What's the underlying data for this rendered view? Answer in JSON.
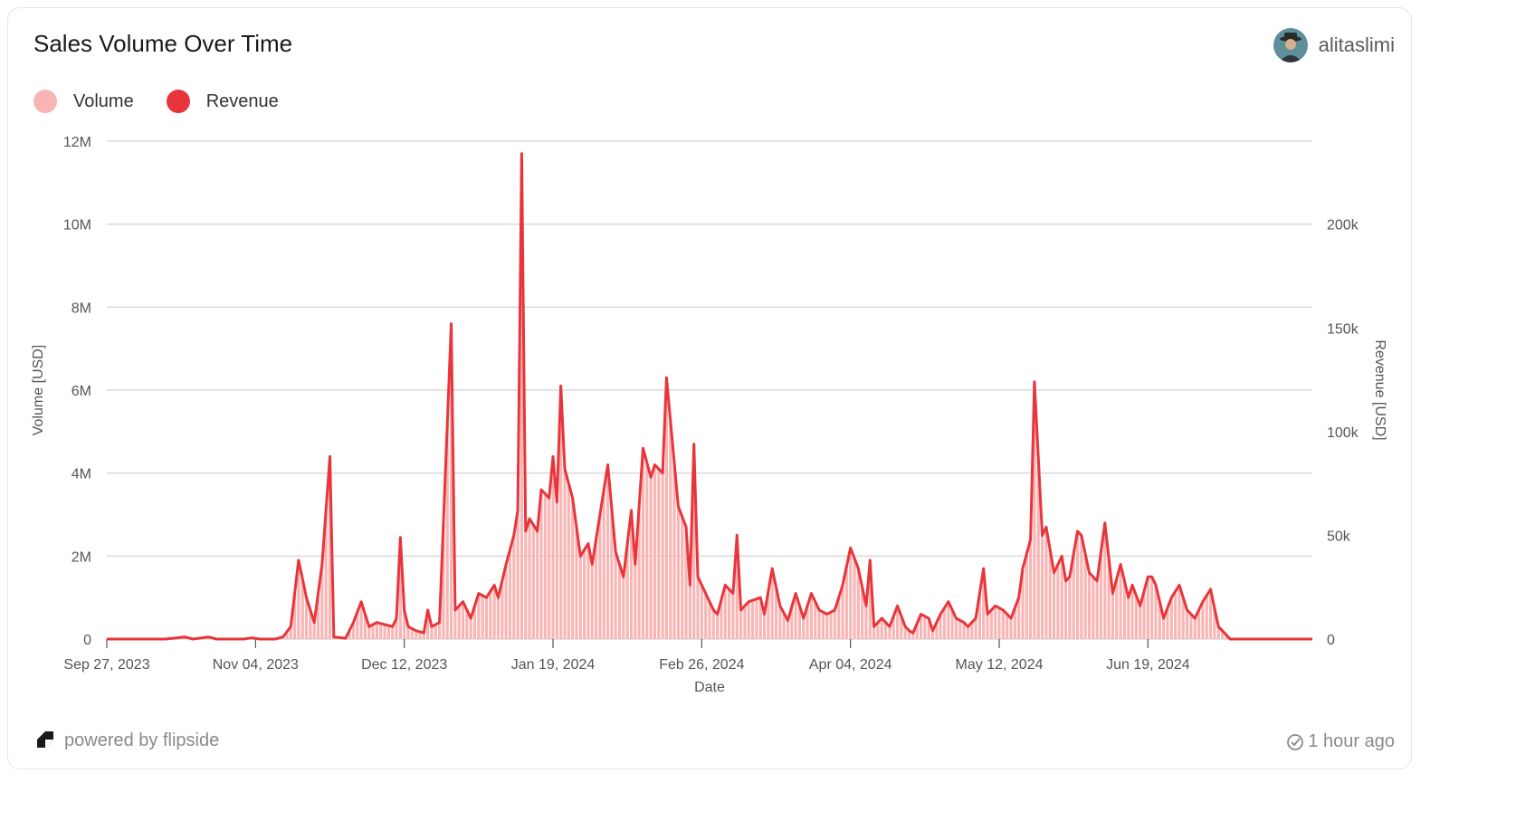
{
  "card": {
    "title": "Sales Volume Over Time",
    "user": {
      "name": "alitaslimi",
      "avatar_icon": "user-avatar-icon"
    },
    "footer": {
      "powered_by": "powered by flipside",
      "updated": "1 hour ago"
    }
  },
  "colors": {
    "volume": "#f9b4b4",
    "revenue": "#e8353b",
    "grid": "#d9d9d9",
    "axis_text": "#555555"
  },
  "chart_data": {
    "type": "bar+line",
    "title": "Sales Volume Over Time",
    "xlabel": "Date",
    "ylabel_left": "Volume [USD]",
    "ylabel_right": "Revenue [USD]",
    "grid": true,
    "legend_position": "top-left",
    "series": [
      {
        "name": "Volume",
        "type": "bar",
        "axis": "left"
      },
      {
        "name": "Revenue",
        "type": "line",
        "axis": "right"
      }
    ],
    "y_left": {
      "min": 0,
      "max": 12000000,
      "ticks": [
        0,
        2000000,
        4000000,
        6000000,
        8000000,
        10000000,
        12000000
      ],
      "tick_labels": [
        "0",
        "2M",
        "4M",
        "6M",
        "8M",
        "10M",
        "12M"
      ]
    },
    "y_right": {
      "min": 0,
      "max": 240000,
      "ticks": [
        0,
        50000,
        100000,
        150000,
        200000
      ],
      "tick_labels": [
        "0",
        "50k",
        "100k",
        "150k",
        "200k"
      ]
    },
    "x_start": "2023-09-27",
    "x_end": "2024-07-31",
    "x_ticks": [
      "2023-09-27",
      "2023-11-04",
      "2023-12-12",
      "2024-01-19",
      "2024-02-26",
      "2024-04-04",
      "2024-05-12",
      "2024-06-19"
    ],
    "x_tick_labels": [
      "Sep 27, 2023",
      "Nov 04, 2023",
      "Dec 12, 2023",
      "Jan 19, 2024",
      "Feb 26, 2024",
      "Apr 04, 2024",
      "May 12, 2024",
      "Jun 19, 2024"
    ],
    "points": [
      [
        "2023-09-27",
        0
      ],
      [
        "2023-10-12",
        0
      ],
      [
        "2023-10-17",
        50000
      ],
      [
        "2023-10-19",
        0
      ],
      [
        "2023-10-23",
        50000
      ],
      [
        "2023-10-25",
        0
      ],
      [
        "2023-11-01",
        0
      ],
      [
        "2023-11-03",
        30000
      ],
      [
        "2023-11-05",
        0
      ],
      [
        "2023-11-09",
        0
      ],
      [
        "2023-11-11",
        50000
      ],
      [
        "2023-11-13",
        300000
      ],
      [
        "2023-11-15",
        1900000
      ],
      [
        "2023-11-17",
        1000000
      ],
      [
        "2023-11-19",
        400000
      ],
      [
        "2023-11-21",
        1800000
      ],
      [
        "2023-11-23",
        4400000
      ],
      [
        "2023-11-24",
        50000
      ],
      [
        "2023-11-27",
        20000
      ],
      [
        "2023-11-29",
        400000
      ],
      [
        "2023-12-01",
        900000
      ],
      [
        "2023-12-03",
        300000
      ],
      [
        "2023-12-05",
        400000
      ],
      [
        "2023-12-07",
        350000
      ],
      [
        "2023-12-09",
        300000
      ],
      [
        "2023-12-10",
        500000
      ],
      [
        "2023-12-11",
        2450000
      ],
      [
        "2023-12-12",
        700000
      ],
      [
        "2023-12-13",
        300000
      ],
      [
        "2023-12-15",
        200000
      ],
      [
        "2023-12-17",
        150000
      ],
      [
        "2023-12-18",
        700000
      ],
      [
        "2023-12-19",
        300000
      ],
      [
        "2023-12-21",
        400000
      ],
      [
        "2023-12-24",
        7600000
      ],
      [
        "2023-12-25",
        700000
      ],
      [
        "2023-12-27",
        900000
      ],
      [
        "2023-12-29",
        500000
      ],
      [
        "2023-12-31",
        1100000
      ],
      [
        "2024-01-02",
        1000000
      ],
      [
        "2024-01-04",
        1300000
      ],
      [
        "2024-01-05",
        1000000
      ],
      [
        "2024-01-07",
        1800000
      ],
      [
        "2024-01-09",
        2500000
      ],
      [
        "2024-01-10",
        3100000
      ],
      [
        "2024-01-11",
        11700000
      ],
      [
        "2024-01-12",
        2600000
      ],
      [
        "2024-01-13",
        2900000
      ],
      [
        "2024-01-15",
        2600000
      ],
      [
        "2024-01-16",
        3600000
      ],
      [
        "2024-01-18",
        3400000
      ],
      [
        "2024-01-19",
        4400000
      ],
      [
        "2024-01-20",
        3300000
      ],
      [
        "2024-01-21",
        6100000
      ],
      [
        "2024-01-22",
        4100000
      ],
      [
        "2024-01-24",
        3400000
      ],
      [
        "2024-01-26",
        2000000
      ],
      [
        "2024-01-28",
        2300000
      ],
      [
        "2024-01-29",
        1800000
      ],
      [
        "2024-01-31",
        3000000
      ],
      [
        "2024-02-02",
        4200000
      ],
      [
        "2024-02-04",
        2100000
      ],
      [
        "2024-02-06",
        1500000
      ],
      [
        "2024-02-08",
        3100000
      ],
      [
        "2024-02-09",
        1800000
      ],
      [
        "2024-02-11",
        4600000
      ],
      [
        "2024-02-13",
        3900000
      ],
      [
        "2024-02-14",
        4200000
      ],
      [
        "2024-02-16",
        4000000
      ],
      [
        "2024-02-17",
        6300000
      ],
      [
        "2024-02-20",
        3200000
      ],
      [
        "2024-02-22",
        2700000
      ],
      [
        "2024-02-23",
        1300000
      ],
      [
        "2024-02-24",
        4700000
      ],
      [
        "2024-02-25",
        1500000
      ],
      [
        "2024-02-27",
        1100000
      ],
      [
        "2024-02-29",
        700000
      ],
      [
        "2024-03-01",
        600000
      ],
      [
        "2024-03-03",
        1300000
      ],
      [
        "2024-03-05",
        1100000
      ],
      [
        "2024-03-06",
        2500000
      ],
      [
        "2024-03-07",
        700000
      ],
      [
        "2024-03-09",
        900000
      ],
      [
        "2024-03-12",
        1000000
      ],
      [
        "2024-03-13",
        600000
      ],
      [
        "2024-03-15",
        1700000
      ],
      [
        "2024-03-17",
        800000
      ],
      [
        "2024-03-19",
        450000
      ],
      [
        "2024-03-21",
        1100000
      ],
      [
        "2024-03-23",
        500000
      ],
      [
        "2024-03-25",
        1100000
      ],
      [
        "2024-03-27",
        700000
      ],
      [
        "2024-03-29",
        600000
      ],
      [
        "2024-03-31",
        700000
      ],
      [
        "2024-04-02",
        1300000
      ],
      [
        "2024-04-04",
        2200000
      ],
      [
        "2024-04-06",
        1700000
      ],
      [
        "2024-04-08",
        800000
      ],
      [
        "2024-04-09",
        1900000
      ],
      [
        "2024-04-10",
        300000
      ],
      [
        "2024-04-12",
        500000
      ],
      [
        "2024-04-14",
        300000
      ],
      [
        "2024-04-16",
        800000
      ],
      [
        "2024-04-18",
        300000
      ],
      [
        "2024-04-19",
        200000
      ],
      [
        "2024-04-20",
        150000
      ],
      [
        "2024-04-22",
        600000
      ],
      [
        "2024-04-24",
        500000
      ],
      [
        "2024-04-25",
        200000
      ],
      [
        "2024-04-27",
        600000
      ],
      [
        "2024-04-29",
        900000
      ],
      [
        "2024-05-01",
        500000
      ],
      [
        "2024-05-03",
        400000
      ],
      [
        "2024-05-04",
        300000
      ],
      [
        "2024-05-06",
        500000
      ],
      [
        "2024-05-08",
        1700000
      ],
      [
        "2024-05-09",
        600000
      ],
      [
        "2024-05-11",
        800000
      ],
      [
        "2024-05-13",
        700000
      ],
      [
        "2024-05-15",
        500000
      ],
      [
        "2024-05-17",
        1000000
      ],
      [
        "2024-05-18",
        1700000
      ],
      [
        "2024-05-20",
        2400000
      ],
      [
        "2024-05-21",
        6200000
      ],
      [
        "2024-05-23",
        2500000
      ],
      [
        "2024-05-24",
        2700000
      ],
      [
        "2024-05-26",
        1600000
      ],
      [
        "2024-05-28",
        2000000
      ],
      [
        "2024-05-29",
        1400000
      ],
      [
        "2024-05-30",
        1500000
      ],
      [
        "2024-06-01",
        2600000
      ],
      [
        "2024-06-02",
        2500000
      ],
      [
        "2024-06-04",
        1600000
      ],
      [
        "2024-06-06",
        1400000
      ],
      [
        "2024-06-08",
        2800000
      ],
      [
        "2024-06-10",
        1100000
      ],
      [
        "2024-06-12",
        1800000
      ],
      [
        "2024-06-14",
        1000000
      ],
      [
        "2024-06-15",
        1300000
      ],
      [
        "2024-06-17",
        800000
      ],
      [
        "2024-06-19",
        1500000
      ],
      [
        "2024-06-20",
        1500000
      ],
      [
        "2024-06-21",
        1300000
      ],
      [
        "2024-06-23",
        500000
      ],
      [
        "2024-06-25",
        1000000
      ],
      [
        "2024-06-27",
        1300000
      ],
      [
        "2024-06-29",
        700000
      ],
      [
        "2024-07-01",
        500000
      ],
      [
        "2024-07-03",
        900000
      ],
      [
        "2024-07-05",
        1200000
      ],
      [
        "2024-07-07",
        300000
      ],
      [
        "2024-07-09",
        100000
      ]
    ]
  }
}
